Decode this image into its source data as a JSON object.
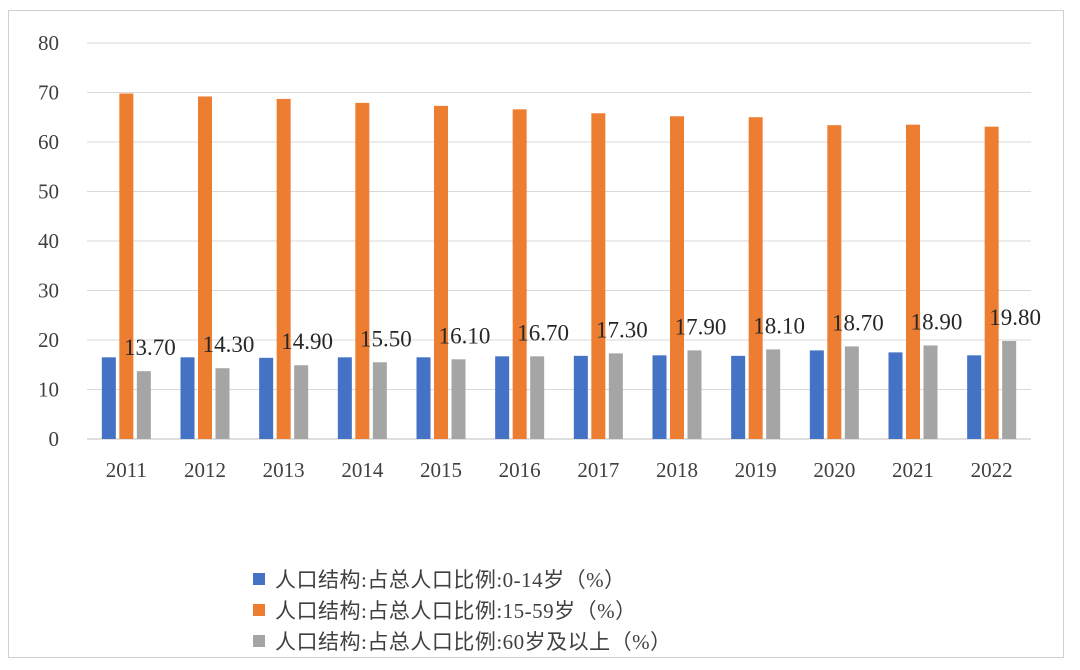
{
  "chart_data": {
    "type": "bar",
    "categories": [
      "2011",
      "2012",
      "2013",
      "2014",
      "2015",
      "2016",
      "2017",
      "2018",
      "2019",
      "2020",
      "2021",
      "2022"
    ],
    "series": [
      {
        "name": "人口结构:占总人口比例:0-14岁（%）",
        "color": "#4472C4",
        "values": [
          16.5,
          16.5,
          16.4,
          16.5,
          16.5,
          16.7,
          16.8,
          16.9,
          16.8,
          17.9,
          17.5,
          16.9
        ]
      },
      {
        "name": "人口结构:占总人口比例:15-59岁（%）",
        "color": "#ED7D31",
        "values": [
          69.8,
          69.2,
          68.7,
          67.9,
          67.3,
          66.6,
          65.8,
          65.2,
          65.0,
          63.4,
          63.5,
          63.1
        ]
      },
      {
        "name": "人口结构:占总人口比例:60岁及以上（%）",
        "color": "#A5A5A5",
        "values": [
          13.7,
          14.3,
          14.9,
          15.5,
          16.1,
          16.7,
          17.3,
          17.9,
          18.1,
          18.7,
          18.9,
          19.8
        ],
        "data_labels": [
          "13.70",
          "14.30",
          "14.90",
          "15.50",
          "16.10",
          "16.70",
          "17.30",
          "17.90",
          "18.10",
          "18.70",
          "18.90",
          "19.80"
        ]
      }
    ],
    "ylim": [
      0,
      80
    ],
    "yticks": [
      0,
      10,
      20,
      30,
      40,
      50,
      60,
      70,
      80
    ],
    "grid": true,
    "legend": "bottom",
    "title": "",
    "xlabel": "",
    "ylabel": ""
  }
}
